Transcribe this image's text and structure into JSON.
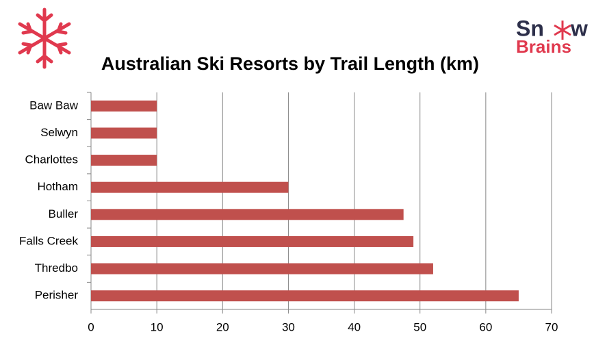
{
  "logo": {
    "top_left": "Sn",
    "top_right": "w",
    "bottom": "Brains"
  },
  "chart_data": {
    "type": "bar",
    "orientation": "horizontal",
    "title": "Australian Ski Resorts by Trail Length (km)",
    "categories": [
      "Baw Baw",
      "Selwyn",
      "Charlottes",
      "Hotham",
      "Buller",
      "Falls Creek",
      "Thredbo",
      "Perisher"
    ],
    "values": [
      10,
      10,
      10,
      30,
      47.5,
      49,
      52,
      65
    ],
    "color": "#c0504d",
    "xlim": [
      0,
      70
    ],
    "xticks": [
      0,
      10,
      20,
      30,
      40,
      50,
      60,
      70
    ],
    "grid": true
  }
}
